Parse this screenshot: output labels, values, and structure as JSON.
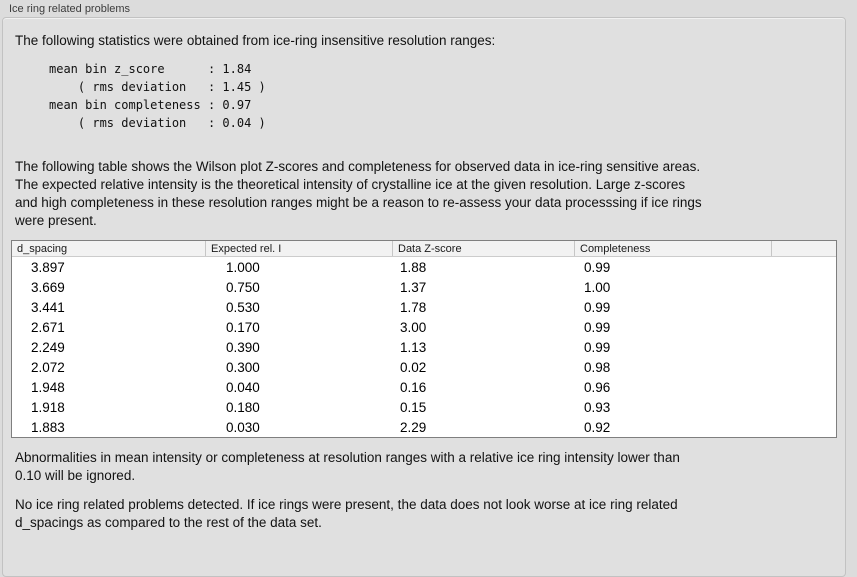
{
  "group_title": "Ice ring related problems",
  "intro": "The following statistics were obtained from ice-ring insensitive resolution ranges:",
  "stats_block": "mean bin z_score      : 1.84\n    ( rms deviation   : 1.45 )\nmean bin completeness : 0.97\n    ( rms deviation   : 0.04 )",
  "table_description": "The following table shows the Wilson plot Z-scores and completeness for observed data in ice-ring sensitive areas.\nThe expected relative intensity is the theoretical intensity of crystalline ice at the given resolution. Large z-scores\nand high completeness in these resolution ranges might be a reason to re-assess your data processsing if ice rings\nwere present.",
  "table": {
    "columns": [
      "d_spacing",
      "Expected rel. I",
      "Data Z-score",
      "Completeness"
    ],
    "rows": [
      [
        "3.897",
        "1.000",
        "1.88",
        "0.99"
      ],
      [
        "3.669",
        "0.750",
        "1.37",
        "1.00"
      ],
      [
        "3.441",
        "0.530",
        "1.78",
        "0.99"
      ],
      [
        "2.671",
        "0.170",
        "3.00",
        "0.99"
      ],
      [
        "2.249",
        "0.390",
        "1.13",
        "0.99"
      ],
      [
        "2.072",
        "0.300",
        "0.02",
        "0.98"
      ],
      [
        "1.948",
        "0.040",
        "0.16",
        "0.96"
      ],
      [
        "1.918",
        "0.180",
        "0.15",
        "0.93"
      ],
      [
        "1.883",
        "0.030",
        "2.29",
        "0.92"
      ]
    ]
  },
  "note_ignore": "Abnormalities in mean intensity or completeness at resolution ranges with a relative ice ring intensity lower than\n0.10 will be ignored.",
  "conclusion": "No ice ring related problems detected. If ice rings were present, the data does not look worse at ice ring related\nd_spacings as compared to the rest of the data set.",
  "colors": {
    "page_bg": "#dcdcdc",
    "groupbox_bg": "#e0e0e0",
    "groupbox_border": "#c2c2c2",
    "table_bg": "#ffffff",
    "table_border": "#7f7f7f",
    "table_header_bg": "#f2f2f2"
  }
}
